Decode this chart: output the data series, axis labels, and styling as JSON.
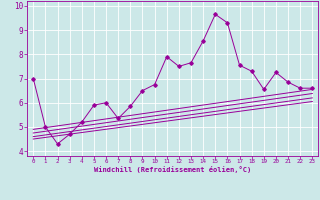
{
  "xlabel": "Windchill (Refroidissement éolien,°C)",
  "xlim": [
    -0.5,
    23.5
  ],
  "ylim": [
    3.8,
    10.2
  ],
  "yticks": [
    4,
    5,
    6,
    7,
    8,
    9,
    10
  ],
  "xticks": [
    0,
    1,
    2,
    3,
    4,
    5,
    6,
    7,
    8,
    9,
    10,
    11,
    12,
    13,
    14,
    15,
    16,
    17,
    18,
    19,
    20,
    21,
    22,
    23
  ],
  "line_color": "#990099",
  "bg_color": "#cce8e8",
  "main_x": [
    0,
    1,
    2,
    3,
    4,
    5,
    6,
    7,
    8,
    9,
    10,
    11,
    12,
    13,
    14,
    15,
    16,
    17,
    18,
    19,
    20,
    21,
    22,
    23
  ],
  "main_y": [
    7.0,
    5.0,
    4.3,
    4.7,
    5.2,
    5.9,
    6.0,
    5.35,
    5.85,
    6.5,
    6.75,
    7.9,
    7.5,
    7.65,
    8.55,
    9.65,
    9.3,
    7.55,
    7.3,
    6.55,
    7.25,
    6.85,
    6.6,
    6.6
  ],
  "trend1_x": [
    0,
    23
  ],
  "trend1_y": [
    4.9,
    6.55
  ],
  "trend2_x": [
    0,
    23
  ],
  "trend2_y": [
    4.75,
    6.38
  ],
  "trend3_x": [
    0,
    23
  ],
  "trend3_y": [
    4.6,
    6.2
  ],
  "trend4_x": [
    0,
    23
  ],
  "trend4_y": [
    4.5,
    6.05
  ]
}
